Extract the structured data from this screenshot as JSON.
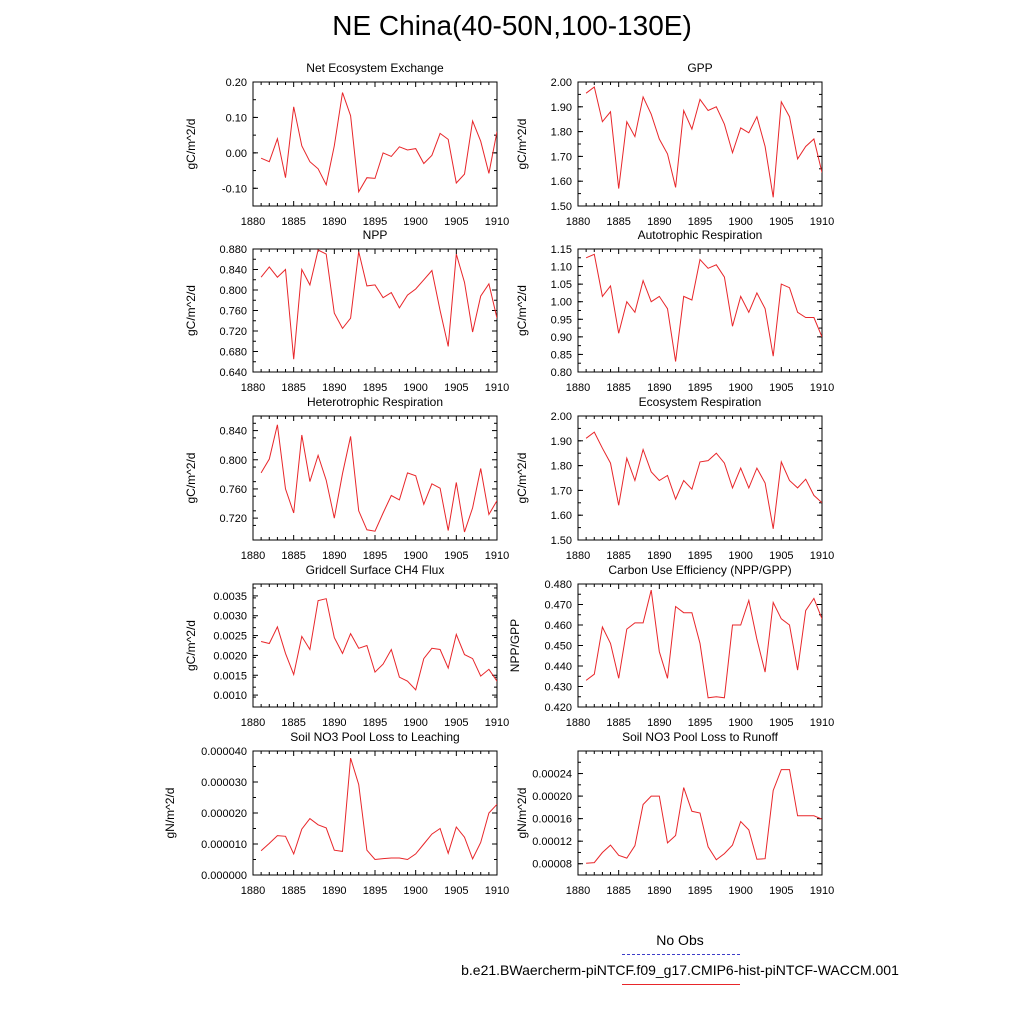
{
  "title": "NE China(40-50N,100-130E)",
  "legend": {
    "obs_label": "No Obs",
    "model_label": "b.e21.BWaercherm-piNTCF.f09_g17.CMIP6-hist-piNTCF-WACCM.001",
    "obs_color": "#3d3dc8",
    "model_color": "#e8262a"
  },
  "chart_data": [
    {
      "type": "line",
      "title": "Net Ecosystem Exchange",
      "ylabel": "gC/m^2/d",
      "xlim": [
        1880,
        1910
      ],
      "ylim": [
        -0.15,
        0.2
      ],
      "yticks": [
        "0.20",
        "0.10",
        "0.00",
        "-0.10"
      ],
      "ytick_values": [
        0.2,
        0.1,
        0.0,
        -0.1
      ],
      "xticks": [
        "1880",
        "1885",
        "1890",
        "1895",
        "1900",
        "1905",
        "1910"
      ],
      "x": [
        1881,
        1882,
        1883,
        1884,
        1885,
        1886,
        1887,
        1888,
        1889,
        1890,
        1891,
        1892,
        1893,
        1894,
        1895,
        1896,
        1897,
        1898,
        1899,
        1900,
        1901,
        1902,
        1903,
        1904,
        1905,
        1906,
        1907,
        1908,
        1909,
        1910
      ],
      "values": [
        -0.015,
        -0.025,
        0.04,
        -0.07,
        0.13,
        0.02,
        -0.025,
        -0.045,
        -0.09,
        0.02,
        0.17,
        0.105,
        -0.11,
        -0.07,
        -0.072,
        0.0,
        -0.01,
        0.017,
        0.008,
        0.012,
        -0.03,
        -0.007,
        0.055,
        0.038,
        -0.085,
        -0.06,
        0.09,
        0.033,
        -0.058,
        0.06
      ]
    },
    {
      "type": "line",
      "title": "GPP",
      "ylabel": "gC/m^2/d",
      "xlim": [
        1880,
        1910
      ],
      "ylim": [
        1.5,
        2.0
      ],
      "yticks": [
        "2.00",
        "1.90",
        "1.80",
        "1.70",
        "1.60",
        "1.50"
      ],
      "ytick_values": [
        2.0,
        1.9,
        1.8,
        1.7,
        1.6,
        1.5
      ],
      "xticks": [
        "1880",
        "1885",
        "1890",
        "1895",
        "1900",
        "1905",
        "1910"
      ],
      "x": [
        1881,
        1882,
        1883,
        1884,
        1885,
        1886,
        1887,
        1888,
        1889,
        1890,
        1891,
        1892,
        1893,
        1894,
        1895,
        1896,
        1897,
        1898,
        1899,
        1900,
        1901,
        1902,
        1903,
        1904,
        1905,
        1906,
        1907,
        1908,
        1909,
        1910
      ],
      "values": [
        1.955,
        1.98,
        1.84,
        1.88,
        1.57,
        1.84,
        1.78,
        1.94,
        1.87,
        1.77,
        1.71,
        1.575,
        1.885,
        1.81,
        1.93,
        1.885,
        1.9,
        1.83,
        1.715,
        1.815,
        1.795,
        1.86,
        1.74,
        1.535,
        1.92,
        1.86,
        1.69,
        1.74,
        1.77,
        1.635
      ]
    },
    {
      "type": "line",
      "title": "NPP",
      "ylabel": "gC/m^2/d",
      "xlim": [
        1880,
        1910
      ],
      "ylim": [
        0.64,
        0.88
      ],
      "yticks": [
        "0.880",
        "0.840",
        "0.800",
        "0.760",
        "0.720",
        "0.680",
        "0.640"
      ],
      "ytick_values": [
        0.88,
        0.84,
        0.8,
        0.76,
        0.72,
        0.68,
        0.64
      ],
      "xticks": [
        "1880",
        "1885",
        "1890",
        "1895",
        "1900",
        "1905",
        "1910"
      ],
      "x": [
        1881,
        1882,
        1883,
        1884,
        1885,
        1886,
        1887,
        1888,
        1889,
        1890,
        1891,
        1892,
        1893,
        1894,
        1895,
        1896,
        1897,
        1898,
        1899,
        1900,
        1901,
        1902,
        1903,
        1904,
        1905,
        1906,
        1907,
        1908,
        1909,
        1910
      ],
      "values": [
        0.825,
        0.845,
        0.825,
        0.84,
        0.665,
        0.84,
        0.81,
        0.878,
        0.87,
        0.755,
        0.725,
        0.745,
        0.875,
        0.808,
        0.81,
        0.785,
        0.795,
        0.765,
        0.79,
        0.802,
        0.82,
        0.838,
        0.76,
        0.69,
        0.87,
        0.815,
        0.718,
        0.788,
        0.812,
        0.745
      ]
    },
    {
      "type": "line",
      "title": "Autotrophic Respiration",
      "ylabel": "gC/m^2/d",
      "xlim": [
        1880,
        1910
      ],
      "ylim": [
        0.8,
        1.15
      ],
      "yticks": [
        "1.15",
        "1.10",
        "1.05",
        "1.00",
        "0.95",
        "0.90",
        "0.85",
        "0.80"
      ],
      "ytick_values": [
        1.15,
        1.1,
        1.05,
        1.0,
        0.95,
        0.9,
        0.85,
        0.8
      ],
      "xticks": [
        "1880",
        "1885",
        "1890",
        "1895",
        "1900",
        "1905",
        "1910"
      ],
      "x": [
        1881,
        1882,
        1883,
        1884,
        1885,
        1886,
        1887,
        1888,
        1889,
        1890,
        1891,
        1892,
        1893,
        1894,
        1895,
        1896,
        1897,
        1898,
        1899,
        1900,
        1901,
        1902,
        1903,
        1904,
        1905,
        1906,
        1907,
        1908,
        1909,
        1910
      ],
      "values": [
        1.125,
        1.135,
        1.015,
        1.045,
        0.91,
        1.0,
        0.97,
        1.06,
        1.0,
        1.015,
        0.98,
        0.83,
        1.015,
        1.005,
        1.12,
        1.095,
        1.105,
        1.07,
        0.93,
        1.015,
        0.97,
        1.025,
        0.98,
        0.845,
        1.05,
        1.04,
        0.97,
        0.955,
        0.955,
        0.9
      ]
    },
    {
      "type": "line",
      "title": "Heterotrophic Respiration",
      "ylabel": "gC/m^2/d",
      "xlim": [
        1880,
        1910
      ],
      "ylim": [
        0.69,
        0.86
      ],
      "yticks": [
        "0.840",
        "0.800",
        "0.760",
        "0.720"
      ],
      "ytick_values": [
        0.84,
        0.8,
        0.76,
        0.72
      ],
      "xticks": [
        "1880",
        "1885",
        "1890",
        "1895",
        "1900",
        "1905",
        "1910"
      ],
      "x": [
        1881,
        1882,
        1883,
        1884,
        1885,
        1886,
        1887,
        1888,
        1889,
        1890,
        1891,
        1892,
        1893,
        1894,
        1895,
        1896,
        1897,
        1898,
        1899,
        1900,
        1901,
        1902,
        1903,
        1904,
        1905,
        1906,
        1907,
        1908,
        1909,
        1910
      ],
      "values": [
        0.782,
        0.801,
        0.848,
        0.76,
        0.727,
        0.834,
        0.77,
        0.806,
        0.772,
        0.72,
        0.781,
        0.832,
        0.73,
        0.704,
        0.702,
        0.727,
        0.751,
        0.745,
        0.782,
        0.778,
        0.739,
        0.767,
        0.761,
        0.703,
        0.769,
        0.701,
        0.734,
        0.788,
        0.725,
        0.744
      ]
    },
    {
      "type": "line",
      "title": "Ecosystem Respiration",
      "ylabel": "gC/m^2/d",
      "xlim": [
        1880,
        1910
      ],
      "ylim": [
        1.5,
        2.0
      ],
      "yticks": [
        "2.00",
        "1.90",
        "1.80",
        "1.70",
        "1.60",
        "1.50"
      ],
      "ytick_values": [
        2.0,
        1.9,
        1.8,
        1.7,
        1.6,
        1.5
      ],
      "xticks": [
        "1880",
        "1885",
        "1890",
        "1895",
        "1900",
        "1905",
        "1910"
      ],
      "x": [
        1881,
        1882,
        1883,
        1884,
        1885,
        1886,
        1887,
        1888,
        1889,
        1890,
        1891,
        1892,
        1893,
        1894,
        1895,
        1896,
        1897,
        1898,
        1899,
        1900,
        1901,
        1902,
        1903,
        1904,
        1905,
        1906,
        1907,
        1908,
        1909,
        1910
      ],
      "values": [
        1.91,
        1.935,
        1.87,
        1.81,
        1.64,
        1.83,
        1.74,
        1.865,
        1.775,
        1.74,
        1.76,
        1.665,
        1.74,
        1.705,
        1.815,
        1.82,
        1.85,
        1.81,
        1.71,
        1.79,
        1.71,
        1.79,
        1.73,
        1.545,
        1.815,
        1.74,
        1.71,
        1.745,
        1.68,
        1.65
      ]
    },
    {
      "type": "line",
      "title": "Gridcell Surface CH4 Flux",
      "ylabel": "gC/m^2/d",
      "xlim": [
        1880,
        1910
      ],
      "ylim": [
        0.0007,
        0.0038
      ],
      "yticks": [
        "0.0035",
        "0.0030",
        "0.0025",
        "0.0020",
        "0.0015",
        "0.0010"
      ],
      "ytick_values": [
        0.0035,
        0.003,
        0.0025,
        0.002,
        0.0015,
        0.001
      ],
      "xticks": [
        "1880",
        "1885",
        "1890",
        "1895",
        "1900",
        "1905",
        "1910"
      ],
      "x": [
        1881,
        1882,
        1883,
        1884,
        1885,
        1886,
        1887,
        1888,
        1889,
        1890,
        1891,
        1892,
        1893,
        1894,
        1895,
        1896,
        1897,
        1898,
        1899,
        1900,
        1901,
        1902,
        1903,
        1904,
        1905,
        1906,
        1907,
        1908,
        1909,
        1910
      ],
      "values": [
        0.00235,
        0.0023,
        0.00272,
        0.00205,
        0.00152,
        0.00248,
        0.00215,
        0.00338,
        0.00343,
        0.00245,
        0.00205,
        0.00255,
        0.00218,
        0.00225,
        0.00158,
        0.00178,
        0.00215,
        0.00145,
        0.00135,
        0.00113,
        0.00192,
        0.00218,
        0.00215,
        0.00168,
        0.00253,
        0.00202,
        0.00192,
        0.00148,
        0.00165,
        0.00135
      ]
    },
    {
      "type": "line",
      "title": "Carbon Use Efficiency (NPP/GPP)",
      "ylabel": "NPP/GPP",
      "xlim": [
        1880,
        1910
      ],
      "ylim": [
        0.42,
        0.48
      ],
      "yticks": [
        "0.480",
        "0.470",
        "0.460",
        "0.450",
        "0.440",
        "0.430",
        "0.420"
      ],
      "ytick_values": [
        0.48,
        0.47,
        0.46,
        0.45,
        0.44,
        0.43,
        0.42
      ],
      "xticks": [
        "1880",
        "1885",
        "1890",
        "1895",
        "1900",
        "1905",
        "1910"
      ],
      "x": [
        1881,
        1882,
        1883,
        1884,
        1885,
        1886,
        1887,
        1888,
        1889,
        1890,
        1891,
        1892,
        1893,
        1894,
        1895,
        1896,
        1897,
        1898,
        1899,
        1900,
        1901,
        1902,
        1903,
        1904,
        1905,
        1906,
        1907,
        1908,
        1909,
        1910
      ],
      "values": [
        0.433,
        0.436,
        0.459,
        0.451,
        0.434,
        0.458,
        0.461,
        0.461,
        0.477,
        0.447,
        0.434,
        0.469,
        0.466,
        0.466,
        0.451,
        0.4245,
        0.425,
        0.4245,
        0.46,
        0.46,
        0.472,
        0.453,
        0.437,
        0.471,
        0.463,
        0.46,
        0.438,
        0.467,
        0.473,
        0.463
      ]
    },
    {
      "type": "line",
      "title": "Soil NO3 Pool Loss to Leaching",
      "ylabel": "gN/m^2/d",
      "xlim": [
        1880,
        1910
      ],
      "ylim": [
        0.0,
        4e-05
      ],
      "yticks": [
        "0.000040",
        "0.000030",
        "0.000020",
        "0.000010",
        "0.000000"
      ],
      "ytick_values": [
        4e-05,
        3e-05,
        2e-05,
        1e-05,
        0.0
      ],
      "xticks": [
        "1880",
        "1885",
        "1890",
        "1895",
        "1900",
        "1905",
        "1910"
      ],
      "x": [
        1881,
        1882,
        1883,
        1884,
        1885,
        1886,
        1887,
        1888,
        1889,
        1890,
        1891,
        1892,
        1893,
        1894,
        1895,
        1896,
        1897,
        1898,
        1899,
        1900,
        1901,
        1902,
        1903,
        1904,
        1905,
        1906,
        1907,
        1908,
        1909,
        1910
      ],
      "values": [
        7.8e-06,
        1.02e-05,
        1.27e-05,
        1.25e-05,
        6.8e-06,
        1.48e-05,
        1.82e-05,
        1.62e-05,
        1.52e-05,
        8e-06,
        7.6e-06,
        3.77e-05,
        2.92e-05,
        8e-06,
        5e-06,
        5.3e-06,
        5.5e-06,
        5.5e-06,
        5e-06,
        6.8e-06,
        1e-05,
        1.32e-05,
        1.5e-05,
        7e-06,
        1.55e-05,
        1.22e-05,
        5.2e-06,
        1.05e-05,
        2e-05,
        2.28e-05
      ]
    },
    {
      "type": "line",
      "title": "Soil NO3 Pool Loss to Runoff",
      "ylabel": "gN/m^2/d",
      "xlim": [
        1880,
        1910
      ],
      "ylim": [
        6e-05,
        0.00028
      ],
      "yticks": [
        "0.00024",
        "0.00020",
        "0.00016",
        "0.00012",
        "0.00008"
      ],
      "ytick_values": [
        0.00024,
        0.0002,
        0.00016,
        0.00012,
        8e-05
      ],
      "xticks": [
        "1880",
        "1885",
        "1890",
        "1895",
        "1900",
        "1905",
        "1910"
      ],
      "x": [
        1881,
        1882,
        1883,
        1884,
        1885,
        1886,
        1887,
        1888,
        1889,
        1890,
        1891,
        1892,
        1893,
        1894,
        1895,
        1896,
        1897,
        1898,
        1899,
        1900,
        1901,
        1902,
        1903,
        1904,
        1905,
        1906,
        1907,
        1908,
        1909,
        1910
      ],
      "values": [
        8.1e-05,
        8.2e-05,
        0.0001,
        0.000113,
        9.5e-05,
        9e-05,
        0.000112,
        0.000185,
        0.0002,
        0.0002,
        0.000117,
        0.00013,
        0.000215,
        0.000173,
        0.00017,
        0.00011,
        8.7e-05,
        9.8e-05,
        0.000113,
        0.000155,
        0.00014,
        8.8e-05,
        8.9e-05,
        0.00021,
        0.000247,
        0.000247,
        0.000165,
        0.000165,
        0.000165,
        0.000159
      ]
    }
  ]
}
